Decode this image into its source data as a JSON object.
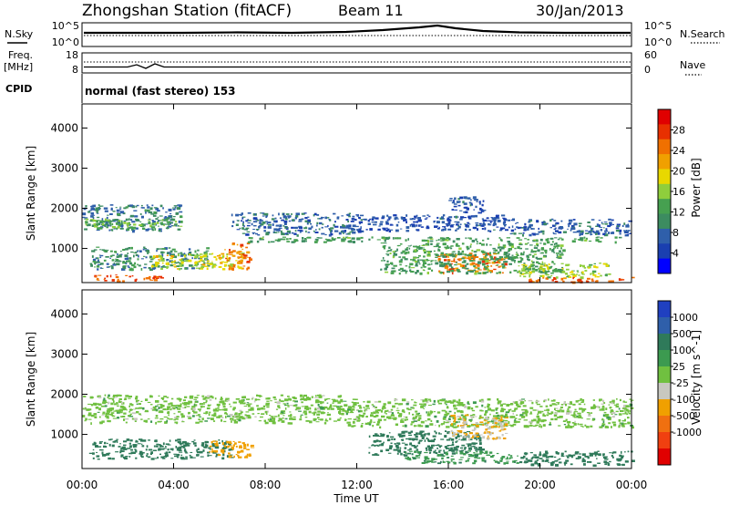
{
  "header": {
    "station": "Zhongshan Station (fitACF)",
    "beam": "Beam 11",
    "date": "30/Jan/2013"
  },
  "noise_panel": {
    "left_label": "N.Sky",
    "left_ticks": [
      "10^5",
      "10^0"
    ],
    "right_label": "N.Search",
    "right_ticks": [
      "10^5",
      "10^0"
    ]
  },
  "freq_panel": {
    "left_label_1": "Freq.",
    "left_label_2": "[MHz]",
    "left_ticks": [
      "18",
      "8"
    ],
    "right_label": "Nave",
    "right_ticks": [
      "60",
      "0"
    ]
  },
  "cpid_panel": {
    "label": "CPID",
    "text": "normal (fast stereo) 153"
  },
  "colors": {
    "power_scale": [
      "#0000ff",
      "#1a3fb0",
      "#2f5faa",
      "#3c8c60",
      "#46a050",
      "#8fce3c",
      "#e8d800",
      "#f0a000",
      "#f07000",
      "#e83000",
      "#e00000"
    ],
    "velocity_scale": [
      "#2040c0",
      "#2f5faa",
      "#2f7a5a",
      "#3c9a50",
      "#70c040",
      "#c8c8c0",
      "#f0a000",
      "#f07010",
      "#f04010",
      "#e00000"
    ]
  },
  "chart_data": [
    {
      "type": "heatmap",
      "name": "power",
      "ylabel": "Slant Range [km]",
      "y_ticks": [
        "1000",
        "2000",
        "3000",
        "4000"
      ],
      "ylim": [
        150,
        4600
      ],
      "x_ticks": [
        "00:00",
        "04:00",
        "08:00",
        "12:00",
        "16:00",
        "20:00",
        "00:00"
      ],
      "xlim_hours": [
        0,
        24
      ],
      "colorbar_label": "Power [dB]",
      "colorbar_ticks": [
        "4",
        "8",
        "12",
        "16",
        "20",
        "24",
        "28"
      ],
      "colorbar_range": [
        0,
        32
      ],
      "scatter_bands": [
        {
          "t0": 0.0,
          "t1": 4.3,
          "r0": 1450,
          "r1": 2100,
          "value": 9
        },
        {
          "t0": 0.0,
          "t1": 4.3,
          "r0": 1500,
          "r1": 1750,
          "value": 14
        },
        {
          "t0": 0.3,
          "t1": 5.5,
          "r0": 500,
          "r1": 1050,
          "value": 10
        },
        {
          "t0": 3.0,
          "t1": 7.0,
          "r0": 500,
          "r1": 900,
          "value": 18
        },
        {
          "t0": 6.2,
          "t1": 7.3,
          "r0": 500,
          "r1": 1150,
          "value": 24
        },
        {
          "t0": 0.5,
          "t1": 3.5,
          "r0": 200,
          "r1": 350,
          "value": 26
        },
        {
          "t0": 6.5,
          "t1": 11.8,
          "r0": 1350,
          "r1": 1900,
          "value": 8
        },
        {
          "t0": 6.8,
          "t1": 23.5,
          "r0": 1180,
          "r1": 1300,
          "value": 12
        },
        {
          "t0": 11.5,
          "t1": 18.5,
          "r0": 1450,
          "r1": 1850,
          "value": 6
        },
        {
          "t0": 15.5,
          "t1": 18.5,
          "r0": 400,
          "r1": 900,
          "value": 24
        },
        {
          "t0": 13.0,
          "t1": 21.0,
          "r0": 400,
          "r1": 1150,
          "value": 12
        },
        {
          "t0": 18.5,
          "t1": 24.0,
          "r0": 1350,
          "r1": 1750,
          "value": 7
        },
        {
          "t0": 19.5,
          "t1": 24.0,
          "r0": 180,
          "r1": 300,
          "value": 26
        },
        {
          "t0": 16.0,
          "t1": 17.5,
          "r0": 1900,
          "r1": 2300,
          "value": 6
        },
        {
          "t0": 19.0,
          "t1": 23.0,
          "r0": 300,
          "r1": 650,
          "value": 16
        }
      ]
    },
    {
      "type": "heatmap",
      "name": "velocity",
      "ylabel": "Slant Range [km]",
      "y_ticks": [
        "1000",
        "2000",
        "3000",
        "4000"
      ],
      "ylim": [
        150,
        4600
      ],
      "x_ticks": [
        "00:00",
        "04:00",
        "08:00",
        "12:00",
        "16:00",
        "20:00",
        "00:00"
      ],
      "xlim_hours": [
        0,
        24
      ],
      "xlabel": "Time UT",
      "colorbar_label": "Velocity [m s^-1]",
      "colorbar_ticks": [
        "1000",
        "500",
        "100",
        "25",
        "-25",
        "-100",
        "-500",
        "-1000"
      ],
      "scatter_bands": [
        {
          "t0": 0.0,
          "t1": 11.5,
          "r0": 1300,
          "r1": 2000,
          "value": 0
        },
        {
          "t0": 11.5,
          "t1": 24.0,
          "r0": 1200,
          "r1": 1900,
          "value": 0
        },
        {
          "t0": 0.3,
          "t1": 6.5,
          "r0": 400,
          "r1": 900,
          "value": 150
        },
        {
          "t0": 5.5,
          "t1": 7.4,
          "r0": 450,
          "r1": 850,
          "value": -150
        },
        {
          "t0": 12.5,
          "t1": 17.5,
          "r0": 500,
          "r1": 1100,
          "value": 150
        },
        {
          "t0": 14.0,
          "t1": 19.0,
          "r0": 300,
          "r1": 600,
          "value": 80
        },
        {
          "t0": 16.0,
          "t1": 18.5,
          "r0": 900,
          "r1": 1500,
          "value": -100
        },
        {
          "t0": 19.0,
          "t1": 24.0,
          "r0": 250,
          "r1": 600,
          "value": 200
        }
      ]
    }
  ]
}
